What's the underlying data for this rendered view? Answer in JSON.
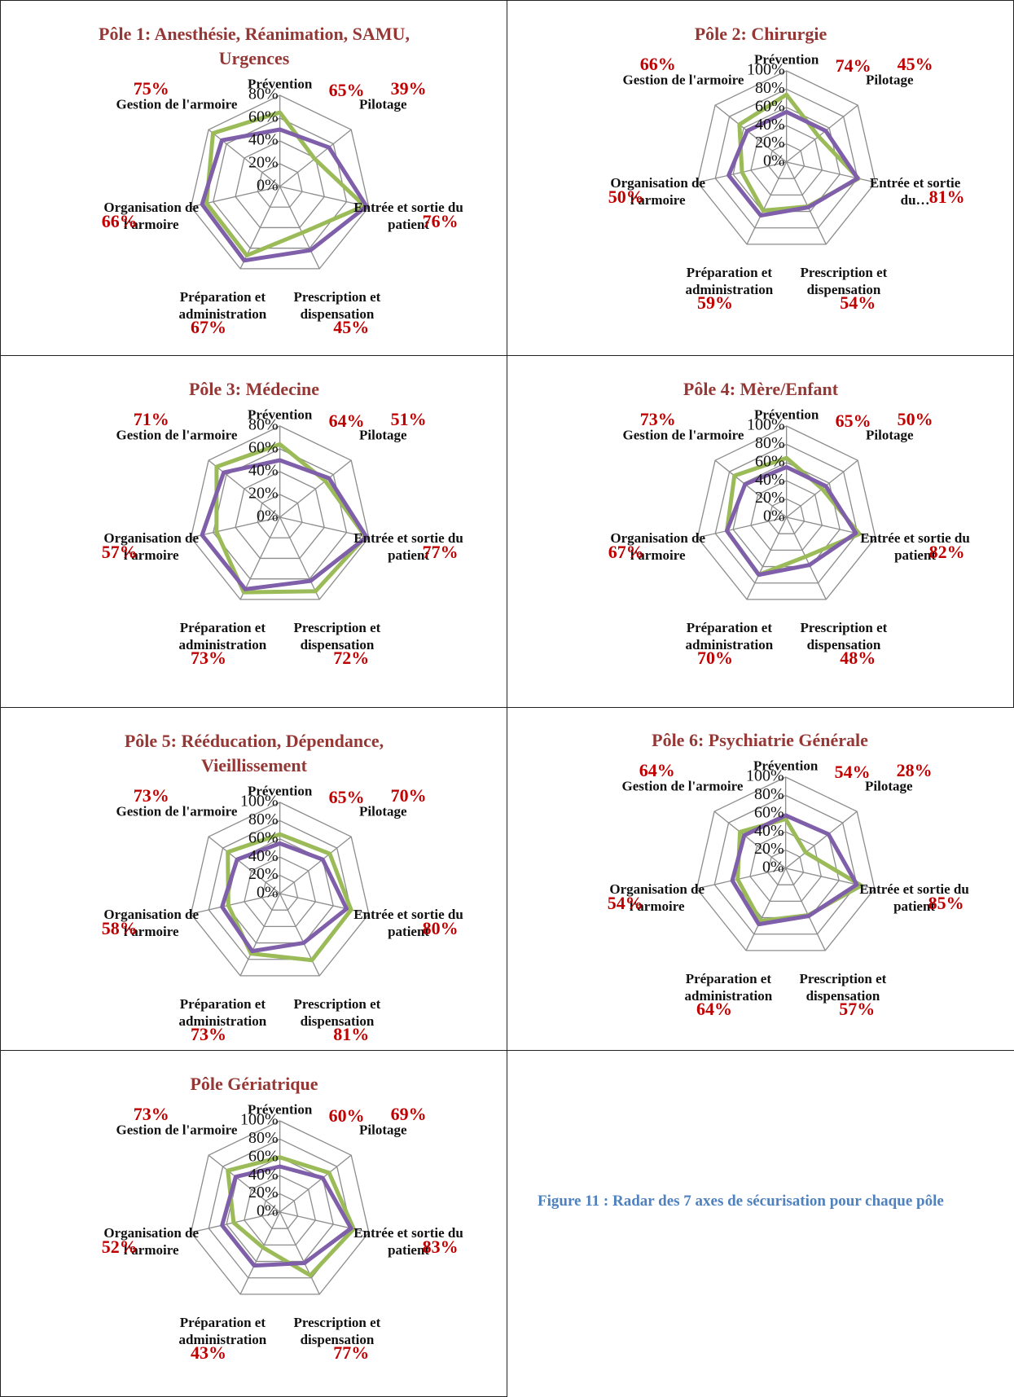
{
  "chart_data": [
    {
      "type": "radar",
      "title": "Pôle 1: Anesthésie, Réanimation, SAMU, Urgences",
      "categories": [
        "Prévention",
        "Pilotage",
        "Entrée et sortie du patient",
        "Prescription et dispensation",
        "Préparation et administration",
        "Organisation de l'armoire",
        "Gestion de l'armoire"
      ],
      "series": [
        {
          "color": "#9bbb59",
          "values": [
            65,
            39,
            76,
            45,
            67,
            66,
            75
          ],
          "value_labels": [
            "65%",
            "39%",
            "76%",
            "45%",
            "67%",
            "66%",
            "75%"
          ]
        },
        {
          "color": "#7f5fa9",
          "values": [
            50,
            55,
            78,
            62,
            72,
            70,
            65
          ]
        }
      ],
      "ylim": [
        0,
        80
      ],
      "yticks": [
        {
          "value": 0,
          "label": "0%"
        },
        {
          "value": 20,
          "label": "20%"
        },
        {
          "value": 40,
          "label": "40%"
        },
        {
          "value": 60,
          "label": "60%"
        },
        {
          "value": 80,
          "label": "80%"
        }
      ]
    },
    {
      "type": "radar",
      "title": "Pôle 2: Chirurgie",
      "categories": [
        "Prévention",
        "Pilotage",
        "Entrée et sortie du…",
        "Prescription et dispensation",
        "Préparation et administration",
        "Organisation de l'armoire",
        "Gestion de l'armoire"
      ],
      "series": [
        {
          "color": "#9bbb59",
          "values": [
            74,
            45,
            81,
            54,
            59,
            50,
            66
          ],
          "value_labels": [
            "74%",
            "45%",
            "81%",
            "54%",
            "59%",
            "50%",
            "66%"
          ]
        },
        {
          "color": "#7f5fa9",
          "values": [
            55,
            55,
            80,
            55,
            65,
            65,
            55
          ]
        }
      ],
      "ylim": [
        0,
        100
      ],
      "yticks": [
        {
          "value": 0,
          "label": "0%"
        },
        {
          "value": 20,
          "label": "20%"
        },
        {
          "value": 40,
          "label": "40%"
        },
        {
          "value": 60,
          "label": "60%"
        },
        {
          "value": 80,
          "label": "80%"
        },
        {
          "value": 100,
          "label": "100%"
        }
      ]
    },
    {
      "type": "radar",
      "title": "Pôle 3: Médecine",
      "categories": [
        "Prévention",
        "Pilotage",
        "Entrée et sortie du patient",
        "Prescription et dispensation",
        "Préparation et administration",
        "Organisation de l'armoire",
        "Gestion de l'armoire"
      ],
      "series": [
        {
          "color": "#9bbb59",
          "values": [
            64,
            51,
            77,
            72,
            73,
            57,
            71
          ],
          "value_labels": [
            "64%",
            "51%",
            "77%",
            "72%",
            "73%",
            "57%",
            "71%"
          ]
        },
        {
          "color": "#7f5fa9",
          "values": [
            50,
            55,
            78,
            62,
            70,
            70,
            63
          ]
        }
      ],
      "ylim": [
        0,
        80
      ],
      "yticks": [
        {
          "value": 0,
          "label": "0%"
        },
        {
          "value": 20,
          "label": "20%"
        },
        {
          "value": 40,
          "label": "40%"
        },
        {
          "value": 60,
          "label": "60%"
        },
        {
          "value": 80,
          "label": "80%"
        }
      ]
    },
    {
      "type": "radar",
      "title": "Pôle 4: Mère/Enfant",
      "categories": [
        "Prévention",
        "Pilotage",
        "Entrée et sortie du patient",
        "Prescription et dispensation",
        "Préparation et administration",
        "Organisation de l'armoire",
        "Gestion de l'armoire"
      ],
      "series": [
        {
          "color": "#9bbb59",
          "values": [
            65,
            50,
            82,
            48,
            70,
            67,
            73
          ],
          "value_labels": [
            "65%",
            "50%",
            "82%",
            "48%",
            "70%",
            "67%",
            "73%"
          ]
        },
        {
          "color": "#7f5fa9",
          "values": [
            55,
            55,
            78,
            58,
            70,
            67,
            58
          ]
        }
      ],
      "ylim": [
        0,
        100
      ],
      "yticks": [
        {
          "value": 0,
          "label": "0%"
        },
        {
          "value": 20,
          "label": "20%"
        },
        {
          "value": 40,
          "label": "40%"
        },
        {
          "value": 60,
          "label": "60%"
        },
        {
          "value": 80,
          "label": "80%"
        },
        {
          "value": 100,
          "label": "100%"
        }
      ]
    },
    {
      "type": "radar",
      "title": "Pôle 5: Rééducation, Dépendance, Vieillissement",
      "categories": [
        "Prévention",
        "Pilotage",
        "Entrée et sortie du patient",
        "Prescription et dispensation",
        "Préparation et administration",
        "Organisation de l'armoire",
        "Gestion de l'armoire"
      ],
      "series": [
        {
          "color": "#9bbb59",
          "values": [
            65,
            70,
            80,
            81,
            73,
            58,
            73
          ],
          "value_labels": [
            "65%",
            "70%",
            "80%",
            "81%",
            "73%",
            "58%",
            "73%"
          ]
        },
        {
          "color": "#7f5fa9",
          "values": [
            55,
            60,
            75,
            60,
            70,
            65,
            60
          ]
        }
      ],
      "ylim": [
        0,
        100
      ],
      "yticks": [
        {
          "value": 0,
          "label": "0%"
        },
        {
          "value": 20,
          "label": "20%"
        },
        {
          "value": 40,
          "label": "40%"
        },
        {
          "value": 60,
          "label": "60%"
        },
        {
          "value": 80,
          "label": "80%"
        },
        {
          "value": 100,
          "label": "100%"
        }
      ]
    },
    {
      "type": "radar",
      "title": "Pôle 6: Psychiatrie Générale",
      "categories": [
        "Prévention",
        "Pilotage",
        "Entrée et sortie du patient",
        "Prescription et dispensation",
        "Préparation et administration",
        "Organisation de l'armoire",
        "Gestion de l'armoire"
      ],
      "series": [
        {
          "color": "#9bbb59",
          "values": [
            54,
            28,
            85,
            57,
            64,
            54,
            64
          ],
          "value_labels": [
            "54%",
            "28%",
            "85%",
            "57%",
            "64%",
            "54%",
            "64%"
          ]
        },
        {
          "color": "#7f5fa9",
          "values": [
            58,
            60,
            80,
            58,
            68,
            60,
            58
          ]
        }
      ],
      "ylim": [
        0,
        100
      ],
      "yticks": [
        {
          "value": 0,
          "label": "0%"
        },
        {
          "value": 20,
          "label": "20%"
        },
        {
          "value": 40,
          "label": "40%"
        },
        {
          "value": 60,
          "label": "60%"
        },
        {
          "value": 80,
          "label": "80%"
        },
        {
          "value": 100,
          "label": "100%"
        }
      ]
    },
    {
      "type": "radar",
      "title": "Pôle Gériatrique",
      "categories": [
        "Prévention",
        "Pilotage",
        "Entrée et sortie du patient",
        "Prescription et dispensation",
        "Préparation et administration",
        "Organisation de l'armoire",
        "Gestion de l'armoire"
      ],
      "series": [
        {
          "color": "#9bbb59",
          "values": [
            60,
            69,
            83,
            77,
            43,
            52,
            73
          ],
          "value_labels": [
            "60%",
            "69%",
            "83%",
            "77%",
            "43%",
            "52%",
            "73%"
          ]
        },
        {
          "color": "#7f5fa9",
          "values": [
            50,
            60,
            80,
            62,
            65,
            65,
            62
          ]
        }
      ],
      "ylim": [
        0,
        100
      ],
      "yticks": [
        {
          "value": 0,
          "label": "0%"
        },
        {
          "value": 20,
          "label": "20%"
        },
        {
          "value": 40,
          "label": "40%"
        },
        {
          "value": 60,
          "label": "60%"
        },
        {
          "value": 80,
          "label": "80%"
        },
        {
          "value": 100,
          "label": "100%"
        }
      ]
    }
  ],
  "caption": "Figure 11 : Radar des 7 axes de sécurisation pour chaque pôle"
}
